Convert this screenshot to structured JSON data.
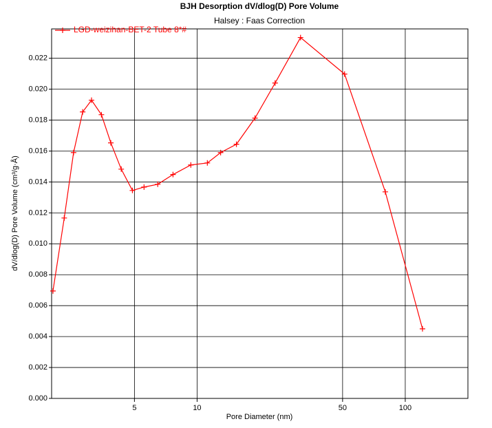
{
  "chart_data": {
    "type": "line",
    "title": "BJH Desorption dV/dlog(D) Pore Volume",
    "subtitle": "Halsey : Faas Correction",
    "x_label": "Pore Diameter (nm)",
    "y_label": "dV/dlog(D) Pore Volume (cm³/g·Å)",
    "x_log": true,
    "grid": true,
    "legend": "top-left",
    "xlim": [
      2,
      200
    ],
    "xticks": [
      5,
      10,
      50,
      100
    ],
    "ylim": [
      0,
      0.0239
    ],
    "yticks": [
      {
        "value": 0,
        "label": "0.000"
      },
      {
        "value": 0.002,
        "label": "0.002"
      },
      {
        "value": 0.004,
        "label": "0.004"
      },
      {
        "value": 0.006,
        "label": "0.006"
      },
      {
        "value": 0.008,
        "label": "0.008"
      },
      {
        "value": 0.01,
        "label": "0.010"
      },
      {
        "value": 0.012,
        "label": "0.012"
      },
      {
        "value": 0.014,
        "label": "0.014"
      },
      {
        "value": 0.016,
        "label": "0.016"
      },
      {
        "value": 0.018,
        "label": "0.018"
      },
      {
        "value": 0.02,
        "label": "0.020"
      },
      {
        "value": 0.022,
        "label": "0.022"
      }
    ],
    "x": [
      2.03,
      2.3,
      2.55,
      2.82,
      3.11,
      3.47,
      3.85,
      4.32,
      4.89,
      5.56,
      6.47,
      7.66,
      9.33,
      11.2,
      12.97,
      15.45,
      18.97,
      23.7,
      31.4,
      51.1,
      80.2,
      121
    ],
    "series": [
      {
        "name": "LGD-weizihan-BET-2  Tube 8*#",
        "color": "#ff0000",
        "values": [
          0.00695,
          0.01167,
          0.0159,
          0.01853,
          0.01929,
          0.01835,
          0.01653,
          0.01483,
          0.01345,
          0.01367,
          0.01385,
          0.01448,
          0.0151,
          0.01523,
          0.0159,
          0.01644,
          0.01813,
          0.0204,
          0.02334,
          0.02098,
          0.01336,
          0.0045
        ]
      }
    ]
  }
}
